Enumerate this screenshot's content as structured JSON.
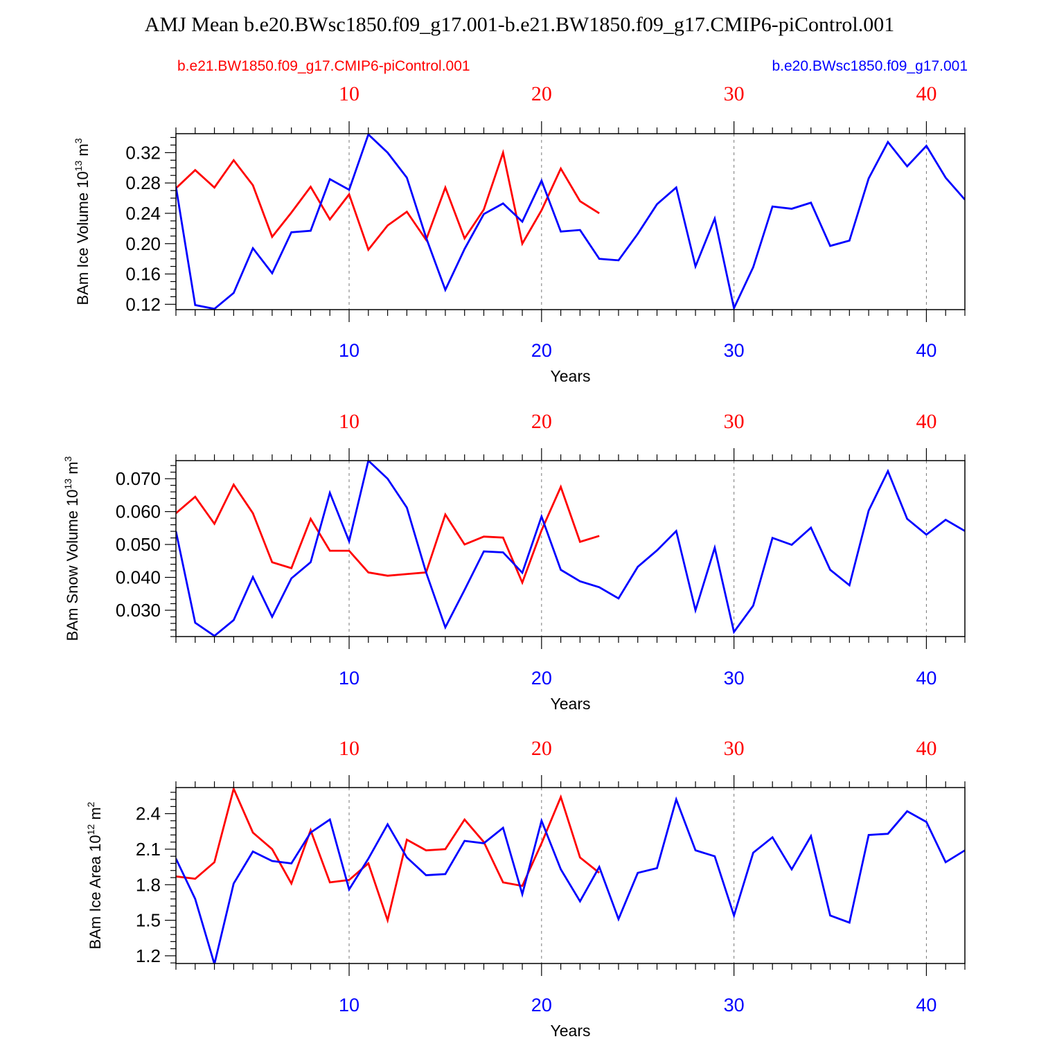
{
  "figure": {
    "title": "AMJ Mean b.e20.BWsc1850.f09_g17.001-b.e21.BW1850.f09_g17.CMIP6-piControl.001",
    "legend_left": "b.e21.BW1850.f09_g17.CMIP6-piControl.001",
    "legend_right": "b.e20.BWsc1850.f09_g17.001"
  },
  "colors": {
    "red_series": "#ff0000",
    "blue_series": "#0000ff",
    "axis": "#000000",
    "grid": "#777777"
  },
  "chart_data": [
    {
      "type": "line",
      "panel": "ice-volume",
      "ylabel": "BAm Ice Volume",
      "ylabel_unit_base": "10",
      "ylabel_unit_exp": "13",
      "ylabel_unit_name": "m",
      "ylabel_unit_name_exp": "3",
      "xlabel": "Years",
      "xlim": [
        1,
        42
      ],
      "ylim": [
        0.113,
        0.345
      ],
      "yticks": [
        0.12,
        0.16,
        0.2,
        0.24,
        0.28,
        0.32
      ],
      "ytick_labels": [
        "0.12",
        "0.16",
        "0.20",
        "0.24",
        "0.28",
        "0.32"
      ],
      "yminor_step": 0.01,
      "xticks": [
        10,
        20,
        30,
        40
      ],
      "xtick_labels": [
        "10",
        "20",
        "30",
        "40"
      ],
      "top_xticks": [
        10,
        20,
        30,
        40
      ],
      "top_xtick_labels": [
        "10",
        "20",
        "30",
        "40"
      ],
      "series": [
        {
          "name": "b.e21.BW1850.f09_g17.CMIP6-piControl.001",
          "color": "#ff0000",
          "x": [
            1,
            2,
            3,
            4,
            5,
            6,
            7,
            8,
            9,
            10,
            11,
            12,
            13,
            14,
            15,
            16,
            17,
            18,
            19,
            20,
            21,
            22,
            23
          ],
          "values": [
            0.273,
            0.297,
            0.274,
            0.31,
            0.277,
            0.209,
            0.241,
            0.275,
            0.232,
            0.265,
            0.192,
            0.224,
            0.242,
            0.205,
            0.274,
            0.207,
            0.245,
            0.32,
            0.2,
            0.244,
            0.299,
            0.256,
            0.24
          ]
        },
        {
          "name": "b.e20.BWsc1850.f09_g17.001",
          "color": "#0000ff",
          "x": [
            1,
            2,
            3,
            4,
            5,
            6,
            7,
            8,
            9,
            10,
            11,
            12,
            13,
            14,
            15,
            16,
            17,
            18,
            19,
            20,
            21,
            22,
            23,
            24,
            25,
            26,
            27,
            28,
            29,
            30,
            31,
            32,
            33,
            34,
            35,
            36,
            37,
            38,
            39,
            40,
            41,
            42
          ],
          "values": [
            0.275,
            0.119,
            0.114,
            0.135,
            0.194,
            0.161,
            0.215,
            0.217,
            0.285,
            0.271,
            0.344,
            0.32,
            0.287,
            0.208,
            0.139,
            0.193,
            0.239,
            0.253,
            0.229,
            0.283,
            0.216,
            0.218,
            0.18,
            0.178,
            0.213,
            0.252,
            0.274,
            0.17,
            0.233,
            0.115,
            0.169,
            0.249,
            0.246,
            0.254,
            0.197,
            0.204,
            0.286,
            0.334,
            0.302,
            0.329,
            0.287,
            0.258
          ]
        }
      ]
    },
    {
      "type": "line",
      "panel": "snow-volume",
      "ylabel": "BAm Snow Volume",
      "ylabel_unit_base": "10",
      "ylabel_unit_exp": "13",
      "ylabel_unit_name": "m",
      "ylabel_unit_name_exp": "3",
      "xlabel": "Years",
      "xlim": [
        1,
        42
      ],
      "ylim": [
        0.022,
        0.0755
      ],
      "yticks": [
        0.03,
        0.04,
        0.05,
        0.06,
        0.07
      ],
      "ytick_labels": [
        "0.030",
        "0.040",
        "0.050",
        "0.060",
        "0.070"
      ],
      "yminor_step": 0.002,
      "xticks": [
        10,
        20,
        30,
        40
      ],
      "xtick_labels": [
        "10",
        "20",
        "30",
        "40"
      ],
      "top_xticks": [
        10,
        20,
        30,
        40
      ],
      "top_xtick_labels": [
        "10",
        "20",
        "30",
        "40"
      ],
      "series": [
        {
          "name": "b.e21.BW1850.f09_g17.CMIP6-piControl.001",
          "color": "#ff0000",
          "x": [
            1,
            2,
            3,
            4,
            5,
            6,
            7,
            8,
            9,
            10,
            11,
            12,
            13,
            14,
            15,
            16,
            17,
            18,
            19,
            20,
            21,
            22,
            23
          ],
          "values": [
            0.0595,
            0.0645,
            0.0563,
            0.0682,
            0.0595,
            0.0446,
            0.0428,
            0.0578,
            0.0481,
            0.0481,
            0.0415,
            0.0405,
            0.041,
            0.0415,
            0.0591,
            0.05,
            0.0524,
            0.0521,
            0.0384,
            0.0543,
            0.0675,
            0.0508,
            0.0526
          ]
        },
        {
          "name": "b.e20.BWsc1850.f09_g17.001",
          "color": "#0000ff",
          "x": [
            1,
            2,
            3,
            4,
            5,
            6,
            7,
            8,
            9,
            10,
            11,
            12,
            13,
            14,
            15,
            16,
            17,
            18,
            19,
            20,
            21,
            22,
            23,
            24,
            25,
            26,
            27,
            28,
            29,
            30,
            31,
            32,
            33,
            34,
            35,
            36,
            37,
            38,
            39,
            40,
            41,
            42
          ],
          "values": [
            0.054,
            0.0262,
            0.0222,
            0.027,
            0.0401,
            0.028,
            0.0397,
            0.0446,
            0.0657,
            0.051,
            0.0755,
            0.07,
            0.0612,
            0.0415,
            0.0248,
            0.0362,
            0.0479,
            0.0476,
            0.0414,
            0.0585,
            0.0423,
            0.0388,
            0.037,
            0.0336,
            0.0432,
            0.0482,
            0.0541,
            0.03,
            0.049,
            0.0234,
            0.0314,
            0.052,
            0.0499,
            0.0551,
            0.0423,
            0.0376,
            0.0603,
            0.0723,
            0.0578,
            0.053,
            0.0575,
            0.0541
          ]
        }
      ]
    },
    {
      "type": "line",
      "panel": "ice-area",
      "ylabel": "BAm Ice Area",
      "ylabel_unit_base": "10",
      "ylabel_unit_exp": "12",
      "ylabel_unit_name": "m",
      "ylabel_unit_name_exp": "2",
      "xlabel": "Years",
      "xlim": [
        1,
        42
      ],
      "ylim": [
        1.135,
        2.62
      ],
      "yticks": [
        1.2,
        1.5,
        1.8,
        2.1,
        2.4
      ],
      "ytick_labels": [
        "1.2",
        "1.5",
        "1.8",
        "2.1",
        "2.4"
      ],
      "yminor_step": 0.06,
      "xticks": [
        10,
        20,
        30,
        40
      ],
      "xtick_labels": [
        "10",
        "20",
        "30",
        "40"
      ],
      "top_xticks": [
        10,
        20,
        30,
        40
      ],
      "top_xtick_labels": [
        "10",
        "20",
        "30",
        "40"
      ],
      "series": [
        {
          "name": "b.e21.BW1850.f09_g17.CMIP6-piControl.001",
          "color": "#ff0000",
          "x": [
            1,
            2,
            3,
            4,
            5,
            6,
            7,
            8,
            9,
            10,
            11,
            12,
            13,
            14,
            15,
            16,
            17,
            18,
            19,
            20,
            21,
            22,
            23
          ],
          "values": [
            1.87,
            1.85,
            1.99,
            2.61,
            2.24,
            2.1,
            1.81,
            2.26,
            1.82,
            1.84,
            1.98,
            1.5,
            2.18,
            2.09,
            2.1,
            2.35,
            2.16,
            1.82,
            1.79,
            2.15,
            2.54,
            2.03,
            1.9
          ]
        },
        {
          "name": "b.e20.BWsc1850.f09_g17.001",
          "color": "#0000ff",
          "x": [
            1,
            2,
            3,
            4,
            5,
            6,
            7,
            8,
            9,
            10,
            11,
            12,
            13,
            14,
            15,
            16,
            17,
            18,
            19,
            20,
            21,
            22,
            23,
            24,
            25,
            26,
            27,
            28,
            29,
            30,
            31,
            32,
            33,
            34,
            35,
            36,
            37,
            38,
            39,
            40,
            41,
            42
          ],
          "values": [
            2.02,
            1.68,
            1.13,
            1.81,
            2.08,
            2.0,
            1.98,
            2.24,
            2.35,
            1.76,
            2.02,
            2.31,
            2.03,
            1.88,
            1.89,
            2.17,
            2.15,
            2.28,
            1.72,
            2.34,
            1.93,
            1.66,
            1.95,
            1.51,
            1.9,
            1.94,
            2.52,
            2.09,
            2.04,
            1.54,
            2.07,
            2.2,
            1.93,
            2.21,
            1.54,
            1.48,
            2.22,
            2.23,
            2.42,
            2.33,
            1.99,
            2.09
          ]
        }
      ]
    }
  ]
}
